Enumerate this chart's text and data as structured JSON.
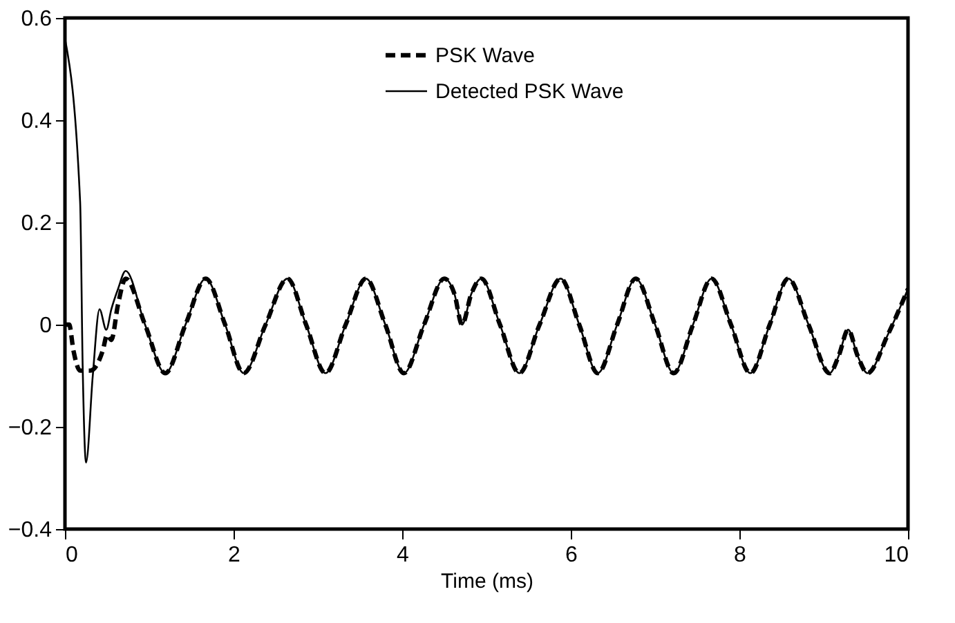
{
  "chart_data": {
    "type": "line",
    "xlabel": "Time (ms)",
    "xlim": [
      0,
      10
    ],
    "ylim": [
      -0.4,
      0.6
    ],
    "xticks": [
      0,
      2,
      4,
      6,
      8,
      10
    ],
    "yticks": [
      {
        "value": -0.4,
        "label": "−0.4"
      },
      {
        "value": -0.2,
        "label": "−0.2"
      },
      0,
      0.2,
      0.4,
      0.6
    ],
    "grid": false,
    "legend": "top",
    "marker": "none",
    "series": [
      {
        "name": "PSK Wave",
        "color": "#000000",
        "line_style": "dashed",
        "x": [
          0,
          0.05,
          0.1,
          0.18,
          0.3,
          0.45,
          0.5,
          0.55,
          0.63,
          0.72,
          0.95,
          1.19,
          1.43,
          1.67,
          1.9,
          2.12,
          2.38,
          2.64,
          2.86,
          3.09,
          3.33,
          3.57,
          3.8,
          4.02,
          4.26,
          4.5,
          4.62,
          4.71,
          4.82,
          4.94,
          5.16,
          5.39,
          5.63,
          5.88,
          6.1,
          6.32,
          6.55,
          6.77,
          7.0,
          7.22,
          7.45,
          7.67,
          7.9,
          8.13,
          8.36,
          8.58,
          8.82,
          9.07,
          9.18,
          9.29,
          9.4,
          9.52,
          9.76,
          10.0
        ],
        "values": [
          0.0,
          0.0,
          -0.05,
          -0.09,
          -0.09,
          -0.05,
          -0.02,
          -0.03,
          0.04,
          0.09,
          0.0,
          -0.095,
          0.0,
          0.09,
          0.0,
          -0.095,
          0.0,
          0.09,
          0.0,
          -0.095,
          0.0,
          0.09,
          0.0,
          -0.095,
          0.0,
          0.09,
          0.06,
          0.0,
          0.06,
          0.09,
          0.0,
          -0.095,
          0.0,
          0.09,
          0.0,
          -0.095,
          0.0,
          0.09,
          0.0,
          -0.095,
          0.0,
          0.09,
          0.0,
          -0.095,
          0.0,
          0.09,
          0.0,
          -0.095,
          -0.06,
          -0.01,
          -0.06,
          -0.095,
          -0.02,
          0.07
        ]
      },
      {
        "name": "Detected PSK Wave",
        "color": "#000000",
        "line_style": "solid",
        "x": [
          0.0,
          0.18,
          0.21,
          0.25,
          0.33,
          0.41,
          0.49,
          0.55,
          0.63,
          0.72,
          0.95,
          1.19,
          1.43,
          1.67,
          1.9,
          2.12,
          2.38,
          2.64,
          2.86,
          3.09,
          3.33,
          3.57,
          3.8,
          4.02,
          4.26,
          4.5,
          4.62,
          4.71,
          4.82,
          4.94,
          5.16,
          5.39,
          5.63,
          5.88,
          6.1,
          6.32,
          6.55,
          6.77,
          7.0,
          7.22,
          7.45,
          7.67,
          7.9,
          8.13,
          8.36,
          8.58,
          8.82,
          9.07,
          9.18,
          9.29,
          9.4,
          9.52,
          9.76,
          10.0
        ],
        "values": [
          0.56,
          0.24,
          -0.08,
          -0.27,
          -0.1,
          0.03,
          -0.01,
          0.03,
          0.07,
          0.105,
          0.0,
          -0.095,
          0.0,
          0.09,
          0.0,
          -0.095,
          0.0,
          0.09,
          0.0,
          -0.095,
          0.0,
          0.09,
          0.0,
          -0.095,
          0.0,
          0.09,
          0.06,
          0.0,
          0.06,
          0.09,
          0.0,
          -0.095,
          0.0,
          0.09,
          0.0,
          -0.095,
          0.0,
          0.09,
          0.0,
          -0.095,
          0.0,
          0.09,
          0.0,
          -0.095,
          0.0,
          0.09,
          0.0,
          -0.095,
          -0.06,
          -0.01,
          -0.06,
          -0.095,
          -0.02,
          0.07
        ]
      }
    ]
  }
}
